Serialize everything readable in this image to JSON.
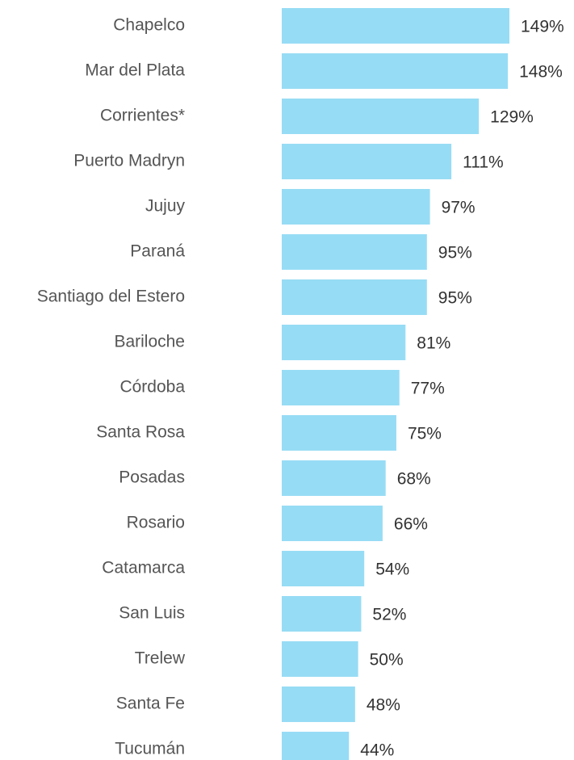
{
  "chart_data": {
    "type": "bar",
    "orientation": "horizontal",
    "color": "#97dcf5",
    "categories": [
      "Chapelco",
      "Mar del Plata",
      "Corrientes*",
      "Puerto Madryn",
      "Jujuy",
      "Paraná",
      "Santiago del Estero",
      "Bariloche",
      "Córdoba",
      "Santa Rosa",
      "Posadas",
      "Rosario",
      "Catamarca",
      "San Luis",
      "Trelew",
      "Santa Fe",
      "Tucumán"
    ],
    "values": [
      149,
      148,
      129,
      111,
      97,
      95,
      95,
      81,
      77,
      75,
      68,
      66,
      54,
      52,
      50,
      48,
      44
    ],
    "value_labels": [
      "149%",
      "148%",
      "129%",
      "111%",
      "97%",
      "95%",
      "95%",
      "81%",
      "77%",
      "75%",
      "68%",
      "66%",
      "54%",
      "52%",
      "50%",
      "48%",
      "44%"
    ]
  }
}
